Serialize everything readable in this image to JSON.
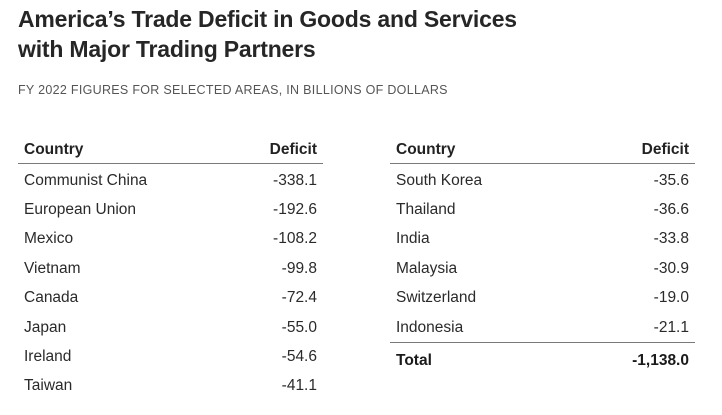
{
  "title": {
    "line1": "America’s Trade Deficit in Goods and Services",
    "line2": "with Major Trading Partners"
  },
  "subtitle": "FY 2022 FIGURES FOR SELECTED AREAS, IN BILLIONS OF DOLLARS",
  "table": {
    "headers": {
      "country": "Country",
      "deficit": "Deficit"
    },
    "left_rows": [
      {
        "country": "Communist China",
        "deficit": "-338.1"
      },
      {
        "country": "European Union",
        "deficit": "-192.6"
      },
      {
        "country": "Mexico",
        "deficit": "-108.2"
      },
      {
        "country": "Vietnam",
        "deficit": "-99.8"
      },
      {
        "country": "Canada",
        "deficit": "-72.4"
      },
      {
        "country": "Japan",
        "deficit": "-55.0"
      },
      {
        "country": "Ireland",
        "deficit": "-54.6"
      },
      {
        "country": "Taiwan",
        "deficit": "-41.1"
      }
    ],
    "right_rows": [
      {
        "country": "South Korea",
        "deficit": "-35.6"
      },
      {
        "country": "Thailand",
        "deficit": "-36.6"
      },
      {
        "country": "India",
        "deficit": "-33.8"
      },
      {
        "country": "Malaysia",
        "deficit": "-30.9"
      },
      {
        "country": "Switzerland",
        "deficit": "-19.0"
      },
      {
        "country": "Indonesia",
        "deficit": "-21.1"
      }
    ],
    "total": {
      "label": "Total",
      "value": "-1,138.0"
    }
  }
}
